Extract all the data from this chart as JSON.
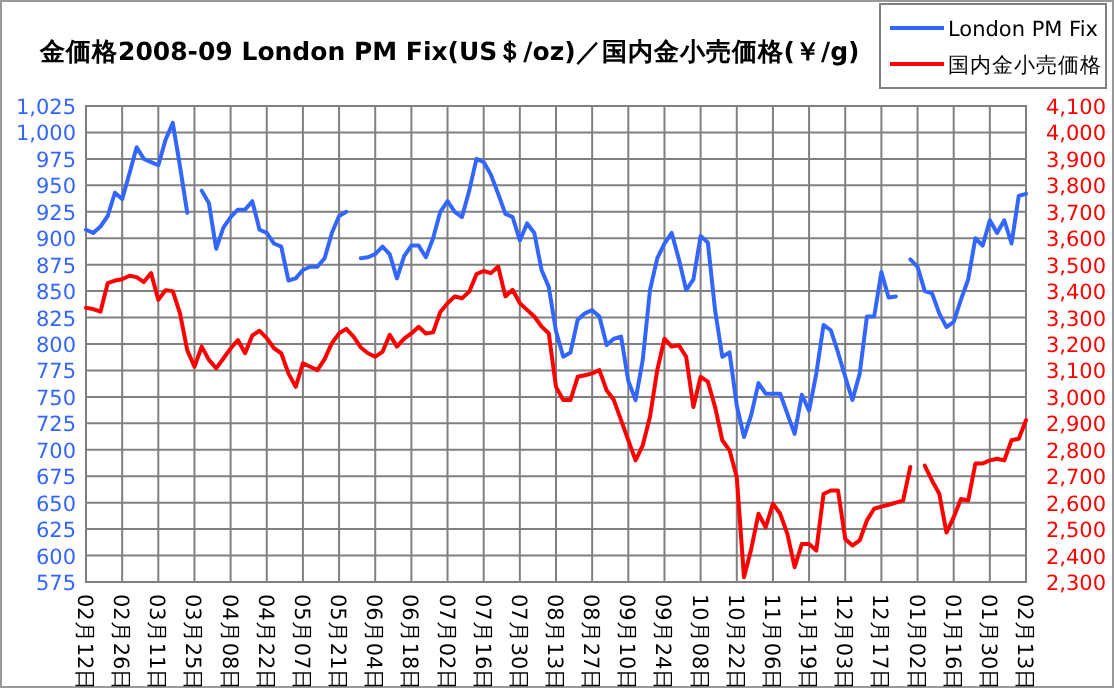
{
  "chart_data": {
    "type": "line",
    "title": "金価格2008-09 London PM Fix(US＄/oz)／国内金小売価格(￥/g)",
    "grid": true,
    "legend": "top right",
    "categories": [
      "02月12日",
      null,
      null,
      null,
      null,
      "02月26日",
      null,
      null,
      null,
      null,
      "03月11日",
      null,
      null,
      null,
      null,
      "03月25日",
      null,
      null,
      null,
      null,
      "04月08日",
      null,
      null,
      null,
      null,
      "04月22日",
      null,
      null,
      null,
      null,
      "05月07日",
      null,
      null,
      null,
      null,
      "05月21日",
      null,
      null,
      null,
      null,
      "06月04日",
      null,
      null,
      null,
      null,
      "06月18日",
      null,
      null,
      null,
      null,
      "07月02日",
      null,
      null,
      null,
      null,
      "07月16日",
      null,
      null,
      null,
      null,
      "07月30日",
      null,
      null,
      null,
      null,
      "08月13日",
      null,
      null,
      null,
      null,
      "08月27日",
      null,
      null,
      null,
      null,
      "09月10日",
      null,
      null,
      null,
      null,
      "09月24日",
      null,
      null,
      null,
      null,
      "10月08日",
      null,
      null,
      null,
      null,
      "10月22日",
      null,
      null,
      null,
      null,
      "11月06日",
      null,
      null,
      null,
      null,
      "11月19日",
      null,
      null,
      null,
      null,
      "12月03日",
      null,
      null,
      null,
      null,
      "12月17日",
      null,
      null,
      null,
      null,
      "01月02日",
      null,
      null,
      null,
      null,
      "01月16日",
      null,
      null,
      null,
      null,
      "01月30日",
      null,
      null,
      null,
      null,
      "02月13日"
    ],
    "ylim": [
      575,
      1025
    ],
    "yticks": [
      575,
      600,
      625,
      650,
      675,
      700,
      725,
      750,
      775,
      800,
      825,
      850,
      875,
      900,
      925,
      950,
      975,
      {
        "value": 1000,
        "label": "1,000"
      },
      {
        "value": 1025,
        "label": "1,025"
      }
    ],
    "y2lim": [
      2300,
      4100
    ],
    "y2ticks": [
      {
        "value": 2300,
        "label": "2,300"
      },
      {
        "value": 2400,
        "label": "2,400"
      },
      {
        "value": 2500,
        "label": "2,500"
      },
      {
        "value": 2600,
        "label": "2,600"
      },
      {
        "value": 2700,
        "label": "2,700"
      },
      {
        "value": 2800,
        "label": "2,800"
      },
      {
        "value": 2900,
        "label": "2,900"
      },
      {
        "value": 3000,
        "label": "3,000"
      },
      {
        "value": 3100,
        "label": "3,100"
      },
      {
        "value": 3200,
        "label": "3,200"
      },
      {
        "value": 3300,
        "label": "3,300"
      },
      {
        "value": 3400,
        "label": "3,400"
      },
      {
        "value": 3500,
        "label": "3,500"
      },
      {
        "value": 3600,
        "label": "3,600"
      },
      {
        "value": 3700,
        "label": "3,700"
      },
      {
        "value": 3800,
        "label": "3,800"
      },
      {
        "value": 3900,
        "label": "3,900"
      },
      {
        "value": 4000,
        "label": "4,000"
      },
      {
        "value": 4100,
        "label": "4,100"
      }
    ],
    "series": [
      {
        "name": "London PM Fix",
        "color": "#3366ff",
        "values": [
          908,
          905,
          911,
          921,
          943,
          937,
          961,
          986,
          975,
          972,
          969,
          993,
          1009,
          968,
          924,
          null,
          945,
          933,
          890,
          910,
          920,
          927,
          927,
          935,
          908,
          905,
          895,
          892,
          860,
          862,
          870,
          873,
          873,
          881,
          905,
          921,
          925,
          null,
          881,
          882,
          885,
          892,
          885,
          862,
          883,
          893,
          893,
          882,
          900,
          925,
          935,
          925,
          920,
          945,
          975,
          972,
          960,
          942,
          923,
          920,
          898,
          914,
          905,
          870,
          854,
          812,
          788,
          792,
          823,
          829,
          832,
          826,
          799,
          805,
          807,
          765,
          747,
          785,
          851,
          881,
          895,
          905,
          880,
          851,
          861,
          902,
          896,
          832,
          788,
          792,
          742,
          712,
          733,
          763,
          753,
          753,
          753,
          734,
          715,
          752,
          737,
          772,
          818,
          813,
          792,
          769,
          747,
          772,
          826,
          826,
          868,
          844,
          845,
          null,
          880,
          873,
          850,
          848,
          829,
          816,
          821,
          842,
          861,
          900,
          893,
          917,
          905,
          917,
          895,
          940,
          942
        ]
      },
      {
        "name": "国内金小売価格",
        "color": "#ff0000",
        "axis": "y2",
        "values": [
          3337,
          3332,
          3322,
          3430,
          3440,
          3445,
          3458,
          3453,
          3434,
          3468,
          3367,
          3403,
          3400,
          3316,
          3177,
          3114,
          3190,
          3140,
          3108,
          3145,
          3183,
          3215,
          3165,
          3232,
          3250,
          3222,
          3184,
          3165,
          3089,
          3038,
          3127,
          3114,
          3101,
          3143,
          3203,
          3240,
          3257,
          3228,
          3187,
          3165,
          3152,
          3170,
          3235,
          3190,
          3220,
          3240,
          3265,
          3240,
          3244,
          3321,
          3354,
          3380,
          3373,
          3398,
          3464,
          3476,
          3468,
          3493,
          3380,
          3405,
          3354,
          3329,
          3304,
          3266,
          3240,
          3038,
          2988,
          2988,
          3076,
          3082,
          3089,
          3101,
          3025,
          2988,
          2912,
          2836,
          2760,
          2817,
          2925,
          3101,
          3220,
          3190,
          3195,
          3152,
          2962,
          3076,
          3058,
          2962,
          2836,
          2798,
          2697,
          2318,
          2425,
          2558,
          2507,
          2596,
          2558,
          2482,
          2356,
          2444,
          2444,
          2419,
          2633,
          2646,
          2646,
          2463,
          2438,
          2457,
          2533,
          2577,
          2585,
          2592,
          2600,
          2608,
          2735,
          null,
          2740,
          2684,
          2634,
          2487,
          2545,
          2614,
          2608,
          2748,
          2748,
          2760,
          2766,
          2760,
          2836,
          2842,
          2912
        ]
      }
    ]
  }
}
